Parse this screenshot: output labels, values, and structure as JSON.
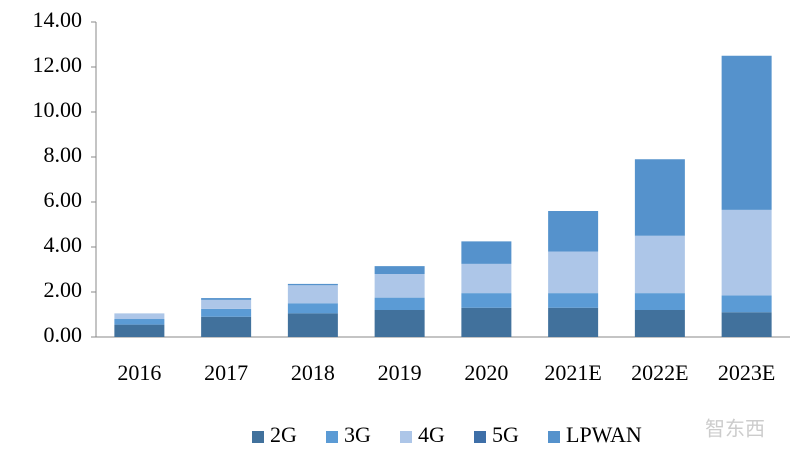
{
  "chart_data": {
    "type": "stacked_bar",
    "categories": [
      "2016",
      "2017",
      "2018",
      "2019",
      "2020",
      "2021E",
      "2022E",
      "2023E"
    ],
    "series": [
      {
        "name": "2G",
        "color": "#41719c",
        "values": [
          0.55,
          0.9,
          1.05,
          1.2,
          1.3,
          1.3,
          1.2,
          1.1
        ]
      },
      {
        "name": "3G",
        "color": "#5b9bd5",
        "values": [
          0.25,
          0.35,
          0.45,
          0.55,
          0.65,
          0.65,
          0.75,
          0.75
        ]
      },
      {
        "name": "4G",
        "color": "#adc6e8",
        "values": [
          0.25,
          0.4,
          0.8,
          1.05,
          1.3,
          1.85,
          2.55,
          3.8
        ]
      },
      {
        "name": "5G",
        "color": "#3e6fa8",
        "values": [
          0,
          0,
          0,
          0,
          0,
          0,
          0,
          0
        ]
      },
      {
        "name": "LPWAN",
        "color": "#5592cc",
        "values": [
          0,
          0.08,
          0.06,
          0.35,
          1.0,
          1.8,
          3.4,
          6.85
        ]
      }
    ],
    "ylim": [
      0,
      14
    ],
    "yticks": [
      {
        "value": 0,
        "label": "0.00"
      },
      {
        "value": 2,
        "label": "2.00"
      },
      {
        "value": 4,
        "label": "4.00"
      },
      {
        "value": 6,
        "label": "6.00"
      },
      {
        "value": 8,
        "label": "8.00"
      },
      {
        "value": 10,
        "label": "10.00"
      },
      {
        "value": 12,
        "label": "12.00"
      },
      {
        "value": 14,
        "label": "14.00"
      }
    ],
    "grid": false,
    "legend": "bottom",
    "watermark": "智东西"
  }
}
